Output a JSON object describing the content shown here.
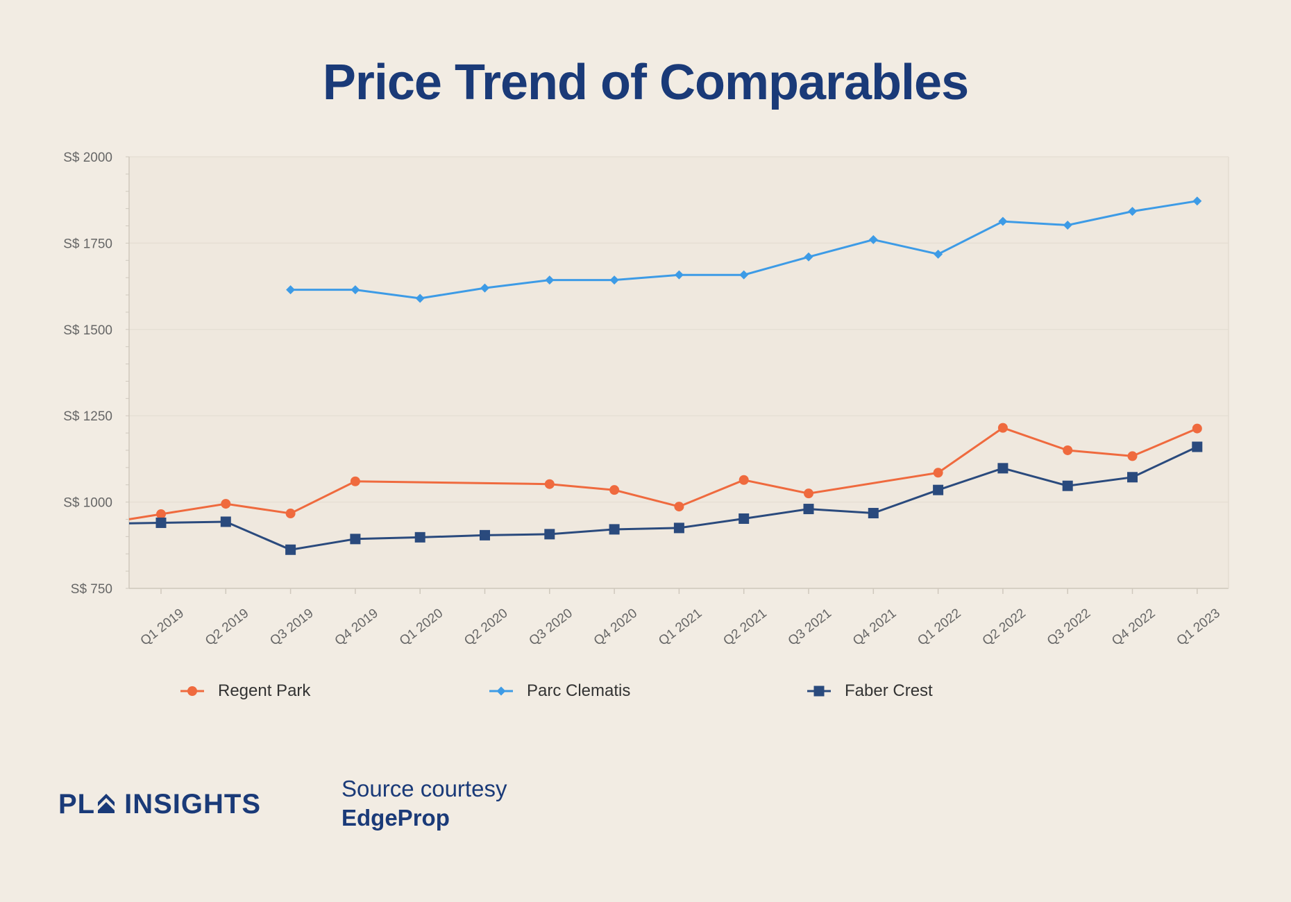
{
  "page": {
    "title": "Price Trend of Comparables"
  },
  "colors": {
    "background": "#f2ece3",
    "title": "#1a3a78",
    "regent_park": "#ef6a3e",
    "parc_clematis": "#3d9be6",
    "faber_crest": "#2a4a7d"
  },
  "chart_data": {
    "type": "line",
    "title": "Price Trend of Comparables",
    "xlabel": "",
    "ylabel": "",
    "ylim": [
      750,
      2000
    ],
    "yticks": [
      750,
      1000,
      1250,
      1500,
      1750,
      2000
    ],
    "ytick_prefix": "S$ ",
    "grid": true,
    "legend_position": "bottom",
    "categories": [
      "Q1 2019",
      "Q2 2019",
      "Q3 2019",
      "Q4 2019",
      "Q1 2020",
      "Q2 2020",
      "Q3 2020",
      "Q4 2020",
      "Q1 2021",
      "Q2 2021",
      "Q3 2021",
      "Q4 2021",
      "Q1 2022",
      "Q2 2022",
      "Q3 2022",
      "Q4 2022",
      "Q1 2023"
    ],
    "series": [
      {
        "name": "Regent Park",
        "color": "#ef6a3e",
        "marker": "circle",
        "values": [
          965,
          995,
          967,
          1060,
          null,
          null,
          1052,
          1035,
          987,
          1064,
          1025,
          null,
          1085,
          1215,
          1150,
          1133,
          1213
        ]
      },
      {
        "name": "Parc Clematis",
        "color": "#3d9be6",
        "marker": "diamond",
        "values": [
          null,
          null,
          1615,
          1615,
          1590,
          1620,
          1643,
          1643,
          1658,
          1658,
          1710,
          1760,
          1718,
          1813,
          1802,
          1842,
          1872
        ]
      },
      {
        "name": "Faber Crest",
        "color": "#2a4a7d",
        "marker": "square",
        "values": [
          940,
          943,
          862,
          893,
          898,
          904,
          907,
          921,
          925,
          952,
          980,
          968,
          1035,
          1098,
          1047,
          1072,
          1160
        ]
      }
    ]
  },
  "footer": {
    "brand_prefix": "PL",
    "brand_suffix": "INSIGHTS",
    "source_line1": "Source courtesy",
    "source_line2": "EdgeProp"
  }
}
